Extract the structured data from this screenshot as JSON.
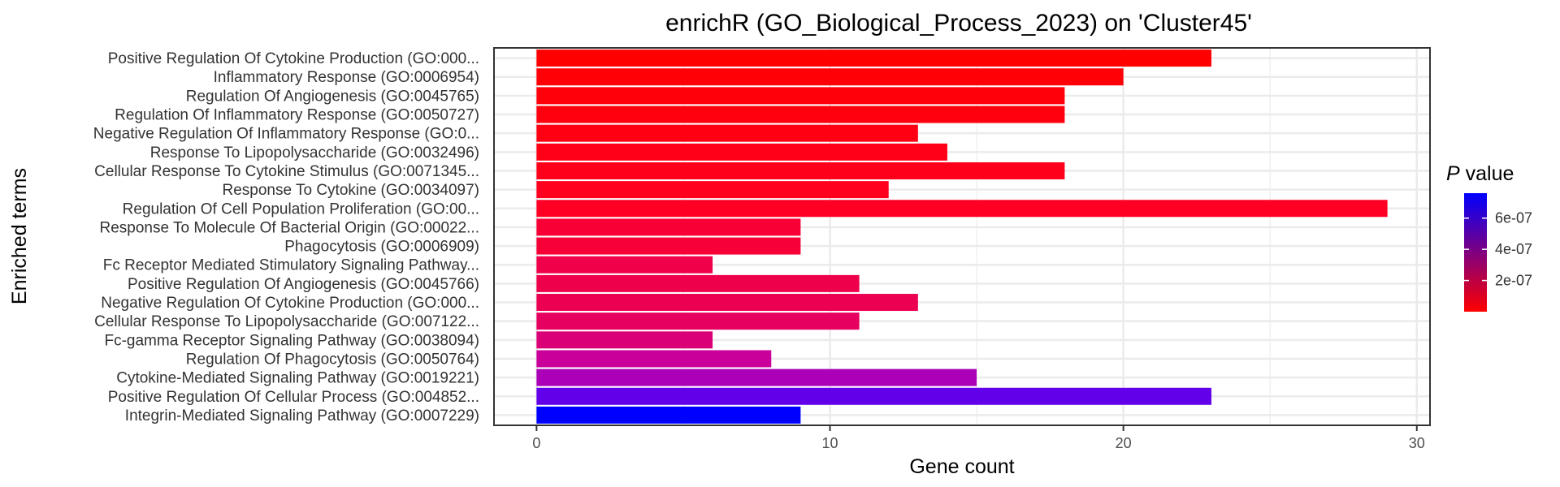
{
  "chart_data": {
    "type": "bar",
    "orientation": "horizontal",
    "title": "enrichR (GO_Biological_Process_2023) on 'Cluster45'",
    "xlabel": "Gene count",
    "ylabel": "Enriched terms",
    "xlim": [
      -1.45,
      30.45
    ],
    "x_ticks": [
      0,
      10,
      20,
      30
    ],
    "grid": true,
    "categories": [
      "Positive Regulation Of Cytokine Production (GO:000...",
      "Inflammatory Response (GO:0006954)",
      "Regulation Of Angiogenesis (GO:0045765)",
      "Regulation Of Inflammatory Response (GO:0050727)",
      "Negative Regulation Of Inflammatory Response (GO:0...",
      "Response To Lipopolysaccharide (GO:0032496)",
      "Cellular Response To Cytokine Stimulus (GO:0071345...",
      "Response To Cytokine (GO:0034097)",
      "Regulation Of Cell Population Proliferation (GO:00...",
      "Response To Molecule Of Bacterial Origin (GO:00022...",
      "Phagocytosis (GO:0006909)",
      "Fc Receptor Mediated Stimulatory Signaling Pathway...",
      "Positive Regulation Of Angiogenesis (GO:0045766)",
      "Negative Regulation Of Cytokine Production (GO:000...",
      "Cellular Response To Lipopolysaccharide (GO:007122...",
      "Fc-gamma Receptor Signaling Pathway (GO:0038094)",
      "Regulation Of Phagocytosis (GO:0050764)",
      "Cytokine-Mediated Signaling Pathway (GO:0019221)",
      "Positive Regulation Of Cellular Process (GO:004852...",
      "Integrin-Mediated Signaling Pathway (GO:0007229)"
    ],
    "values": [
      23,
      20,
      18,
      18,
      13,
      14,
      18,
      12,
      29,
      9,
      9,
      6,
      11,
      13,
      11,
      6,
      8,
      15,
      23,
      9
    ],
    "colors": [
      "#FF0000",
      "#FF0006",
      "#FF000A",
      "#FF000E",
      "#FF0012",
      "#FF0016",
      "#FF001A",
      "#FF001F",
      "#FF0024",
      "#F80036",
      "#F70038",
      "#EF0049",
      "#EF004A",
      "#EC0052",
      "#E60060",
      "#DA0077",
      "#C9009A",
      "#AB00B7",
      "#6200E9",
      "#0000FF"
    ],
    "legend": {
      "title_italic": "P",
      "title_rest": " value",
      "position": "right",
      "range": [
        0,
        7.6e-07
      ],
      "ticks": [
        {
          "value": 2e-07,
          "label": "2e-07"
        },
        {
          "value": 4e-07,
          "label": "4e-07"
        },
        {
          "value": 6e-07,
          "label": "6e-07"
        }
      ],
      "gradient": [
        "#FF0000",
        "#0000FF"
      ]
    }
  }
}
